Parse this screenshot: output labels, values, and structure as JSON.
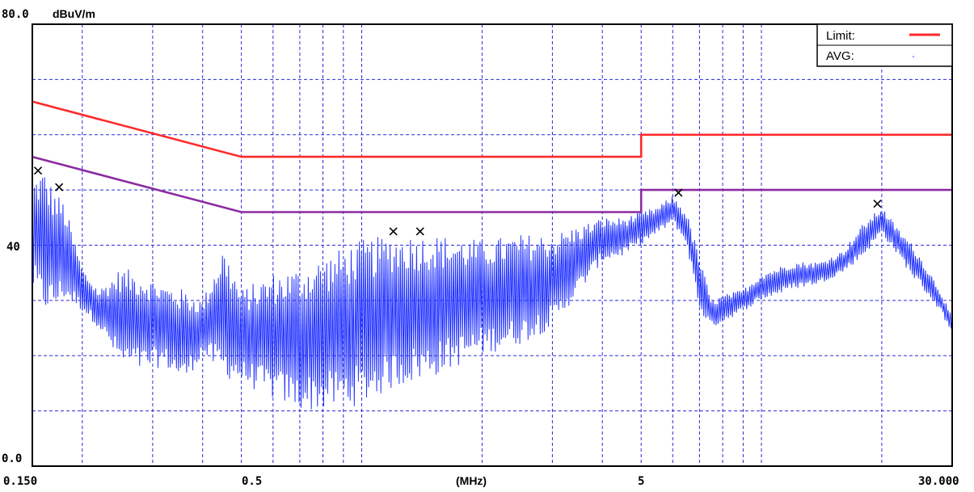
{
  "chart_data": {
    "type": "line",
    "ylabel_unit": "dBuV/m",
    "xlabel": "(MHz)",
    "x_scale": "log",
    "xlim": [
      0.15,
      30
    ],
    "ylim": [
      0,
      80
    ],
    "y_tick_labels": {
      "top": "80.0",
      "mid": "40",
      "bottom": "0.0"
    },
    "x_tick_labels": [
      {
        "value": 0.15,
        "label": "0.150"
      },
      {
        "value": 0.5,
        "label": "0.5"
      },
      {
        "value": 5,
        "label": "5"
      },
      {
        "value": 30,
        "label": "30.000"
      }
    ],
    "grid": true,
    "colors": {
      "limit": "#ff2a2a",
      "avg_limit": "#8a2ba0",
      "trace": "#2233ff",
      "grid": "#2b2bd8"
    },
    "legend": {
      "position": "top-right",
      "entries": [
        {
          "label": "Limit:",
          "color": "#ff2a2a"
        },
        {
          "label": "AVG:",
          "color": "#2233ff"
        }
      ]
    },
    "series": [
      {
        "role": "limit",
        "points": [
          [
            0.15,
            66
          ],
          [
            0.5,
            56
          ],
          [
            5,
            56
          ],
          [
            5,
            60
          ],
          [
            30,
            60
          ]
        ]
      },
      {
        "role": "avg_limit",
        "points": [
          [
            0.15,
            56
          ],
          [
            0.5,
            46
          ],
          [
            5,
            46
          ],
          [
            5,
            50
          ],
          [
            30,
            50
          ]
        ]
      },
      {
        "role": "trace",
        "envelope": [
          [
            0.15,
            32,
            52
          ],
          [
            0.16,
            28,
            54
          ],
          [
            0.17,
            28,
            50
          ],
          [
            0.18,
            30,
            48
          ],
          [
            0.2,
            28,
            36
          ],
          [
            0.22,
            25,
            32
          ],
          [
            0.25,
            18,
            36
          ],
          [
            0.28,
            17,
            35
          ],
          [
            0.32,
            18,
            33
          ],
          [
            0.36,
            15,
            32
          ],
          [
            0.4,
            20,
            30
          ],
          [
            0.45,
            16,
            40
          ],
          [
            0.5,
            15,
            32
          ],
          [
            0.6,
            12,
            35
          ],
          [
            0.7,
            10,
            36
          ],
          [
            0.8,
            10,
            38
          ],
          [
            1.0,
            11,
            41
          ],
          [
            1.2,
            14,
            42
          ],
          [
            1.5,
            16,
            42
          ],
          [
            2.0,
            20,
            41
          ],
          [
            2.5,
            22,
            42
          ],
          [
            3.0,
            25,
            42
          ],
          [
            4.0,
            37,
            45
          ],
          [
            4.5,
            38,
            45
          ],
          [
            5.0,
            40,
            46
          ],
          [
            5.5,
            42,
            47
          ],
          [
            6.0,
            44,
            49
          ],
          [
            6.5,
            40,
            46
          ],
          [
            7.0,
            28,
            38
          ],
          [
            7.5,
            25,
            30
          ],
          [
            8.0,
            26,
            31
          ],
          [
            9.0,
            28,
            32
          ],
          [
            10.0,
            30,
            35
          ],
          [
            12.0,
            32,
            37
          ],
          [
            14.0,
            33,
            37
          ],
          [
            16.0,
            35,
            39
          ],
          [
            18.0,
            38,
            44
          ],
          [
            20.0,
            42,
            47
          ],
          [
            22.0,
            38,
            43
          ],
          [
            24.0,
            34,
            40
          ],
          [
            26.0,
            31,
            36
          ],
          [
            28.0,
            28,
            32
          ],
          [
            30.0,
            24,
            27
          ]
        ]
      }
    ],
    "peaks": [
      {
        "x": 0.155,
        "y": 53.5
      },
      {
        "x": 0.175,
        "y": 50.5
      },
      {
        "x": 1.2,
        "y": 42.5
      },
      {
        "x": 1.4,
        "y": 42.5
      },
      {
        "x": 6.2,
        "y": 49.5
      },
      {
        "x": 19.5,
        "y": 47.5
      }
    ]
  }
}
